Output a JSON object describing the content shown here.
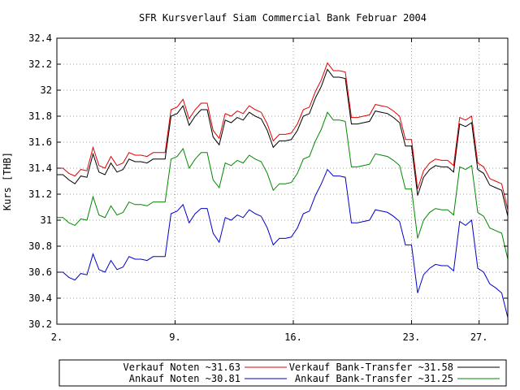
{
  "chart_data": {
    "type": "line",
    "title": "SFR Kursverlauf Siam Commercial Bank Februar 2004",
    "ylabel": "Kurs [THB]",
    "xlabel": "",
    "ylim": [
      30.2,
      32.4
    ],
    "xlim": [
      2,
      28.7
    ],
    "grid": true,
    "legend_position": "bottom",
    "y_ticks": [
      "30.2",
      "30.4",
      "30.6",
      "30.8",
      "31",
      "31.2",
      "31.4",
      "31.6",
      "31.8",
      "32",
      "32.2",
      "32.4"
    ],
    "x_ticks": [
      {
        "x": 2,
        "label": "2."
      },
      {
        "x": 9,
        "label": "9."
      },
      {
        "x": 16,
        "label": "16."
      },
      {
        "x": 23,
        "label": "23."
      },
      {
        "x": 27,
        "label": "27."
      }
    ],
    "x": [
      2.0,
      2.36,
      2.71,
      3.07,
      3.42,
      3.78,
      4.14,
      4.49,
      4.85,
      5.2,
      5.56,
      5.92,
      6.27,
      6.63,
      6.98,
      7.34,
      7.7,
      8.05,
      8.41,
      8.76,
      9.12,
      9.47,
      9.83,
      10.19,
      10.54,
      10.9,
      11.25,
      11.61,
      11.97,
      12.32,
      12.68,
      13.03,
      13.39,
      13.75,
      14.1,
      14.46,
      14.81,
      15.17,
      15.53,
      15.88,
      16.24,
      16.59,
      16.95,
      17.31,
      17.66,
      18.02,
      18.37,
      18.73,
      19.08,
      19.44,
      19.8,
      20.15,
      20.51,
      20.86,
      21.22,
      21.58,
      21.93,
      22.29,
      22.64,
      23.0,
      23.36,
      23.71,
      24.07,
      24.42,
      24.78,
      25.14,
      25.49,
      25.85,
      26.2,
      26.56,
      26.92,
      27.27,
      27.63,
      27.98,
      28.34,
      28.7
    ],
    "series": [
      {
        "name": "Verkauf Noten ~31.63",
        "color": "#e00000",
        "values": [
          31.4,
          31.4,
          31.36,
          31.34,
          31.39,
          31.38,
          31.56,
          31.42,
          31.4,
          31.49,
          31.42,
          31.44,
          31.52,
          31.5,
          31.5,
          31.49,
          31.52,
          31.52,
          31.52,
          31.85,
          31.87,
          31.93,
          31.78,
          31.85,
          31.9,
          31.9,
          31.69,
          31.63,
          31.82,
          31.8,
          31.84,
          31.82,
          31.88,
          31.85,
          31.83,
          31.74,
          31.61,
          31.66,
          31.66,
          31.67,
          31.74,
          31.85,
          31.87,
          31.99,
          32.08,
          32.21,
          32.15,
          32.15,
          32.14,
          31.79,
          31.79,
          31.8,
          31.81,
          31.89,
          31.88,
          31.87,
          31.84,
          31.8,
          31.62,
          31.62,
          31.24,
          31.38,
          31.44,
          31.47,
          31.46,
          31.46,
          31.42,
          31.79,
          31.77,
          31.8,
          31.44,
          31.41,
          31.32,
          31.3,
          31.28,
          31.08
        ]
      },
      {
        "name": "Verkauf Bank-Transfer ~31.58",
        "color": "#000000",
        "values": [
          31.35,
          31.35,
          31.31,
          31.28,
          31.34,
          31.33,
          31.51,
          31.37,
          31.35,
          31.44,
          31.37,
          31.39,
          31.47,
          31.45,
          31.45,
          31.44,
          31.47,
          31.47,
          31.47,
          31.8,
          31.82,
          31.88,
          31.73,
          31.8,
          31.85,
          31.85,
          31.64,
          31.58,
          31.77,
          31.75,
          31.79,
          31.77,
          31.83,
          31.8,
          31.78,
          31.69,
          31.56,
          31.61,
          31.61,
          31.62,
          31.69,
          31.8,
          31.82,
          31.94,
          32.03,
          32.16,
          32.1,
          32.1,
          32.09,
          31.74,
          31.74,
          31.75,
          31.76,
          31.84,
          31.83,
          31.82,
          31.79,
          31.75,
          31.57,
          31.57,
          31.19,
          31.33,
          31.39,
          31.42,
          31.41,
          31.41,
          31.37,
          31.74,
          31.72,
          31.75,
          31.39,
          31.36,
          31.27,
          31.25,
          31.23,
          31.03
        ]
      },
      {
        "name": "Ankauf Noten ~30.81",
        "color": "#0000cc",
        "values": [
          30.6,
          30.6,
          30.56,
          30.54,
          30.59,
          30.58,
          30.74,
          30.62,
          30.6,
          30.69,
          30.62,
          30.64,
          30.72,
          30.7,
          30.7,
          30.69,
          30.72,
          30.72,
          30.72,
          31.05,
          31.07,
          31.12,
          30.98,
          31.05,
          31.09,
          31.09,
          30.9,
          30.83,
          31.02,
          31.0,
          31.04,
          31.02,
          31.08,
          31.05,
          31.03,
          30.94,
          30.81,
          30.86,
          30.86,
          30.87,
          30.94,
          31.05,
          31.07,
          31.19,
          31.28,
          31.39,
          31.34,
          31.34,
          31.33,
          30.98,
          30.98,
          30.99,
          31.0,
          31.08,
          31.07,
          31.06,
          31.03,
          30.99,
          30.81,
          30.81,
          30.44,
          30.58,
          30.63,
          30.66,
          30.65,
          30.65,
          30.61,
          30.99,
          30.96,
          31.0,
          30.63,
          30.6,
          30.51,
          30.48,
          30.44,
          30.25
        ]
      },
      {
        "name": "Ankauf Bank-Transfer ~31.25",
        "color": "#008800",
        "values": [
          31.02,
          31.02,
          30.98,
          30.96,
          31.01,
          31.0,
          31.18,
          31.04,
          31.02,
          31.11,
          31.04,
          31.06,
          31.14,
          31.12,
          31.12,
          31.11,
          31.14,
          31.14,
          31.14,
          31.47,
          31.49,
          31.55,
          31.4,
          31.47,
          31.52,
          31.52,
          31.31,
          31.25,
          31.44,
          31.42,
          31.46,
          31.44,
          31.5,
          31.47,
          31.45,
          31.36,
          31.23,
          31.28,
          31.28,
          31.29,
          31.36,
          31.47,
          31.49,
          31.61,
          31.7,
          31.83,
          31.77,
          31.77,
          31.76,
          31.41,
          31.41,
          31.42,
          31.43,
          31.51,
          31.5,
          31.49,
          31.46,
          31.42,
          31.24,
          31.24,
          30.86,
          31.0,
          31.06,
          31.09,
          31.08,
          31.08,
          31.04,
          31.41,
          31.39,
          31.42,
          31.06,
          31.03,
          30.94,
          30.92,
          30.9,
          30.7
        ]
      }
    ]
  }
}
